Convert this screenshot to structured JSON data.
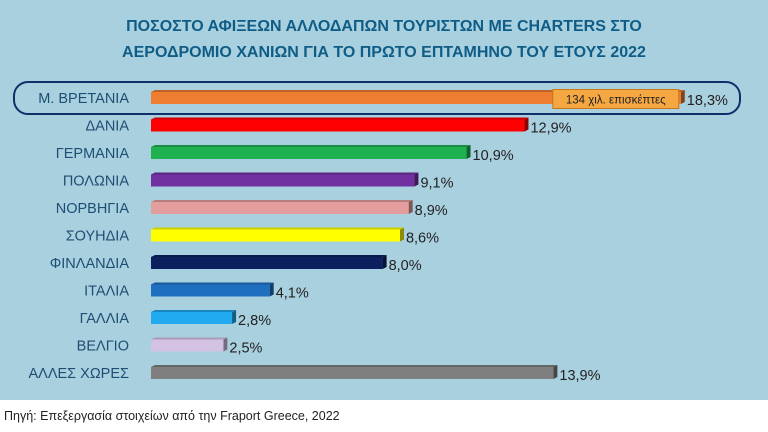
{
  "chart_data": {
    "type": "bar",
    "orientation": "horizontal",
    "title": "ΠΟΣΟΣΤΟ ΑΦΙΞΕΩΝ ΑΛΛΟΔΑΠΩΝ ΤΟΥΡΙΣΤΩΝ ΜΕ CHARTERS ΣΤΟ ΑΕΡΟΔΡΟΜΙΟ ΧΑΝΙΩΝ ΓΙΑ ΤΟ ΠΡΩΤΟ ΕΠΤΑΜΗΝΟ ΤΟΥ ΕΤΟΥΣ 2022",
    "title_lines": [
      "ΠΟΣΟΣΤΟ ΑΦΙΞΕΩΝ ΑΛΛΟΔΑΠΩΝ ΤΟΥΡΙΣΤΩΝ ΜΕ CHARTERS ΣΤΟ",
      "ΑΕΡΟΔΡΟΜΙΟ ΧΑΝΙΩΝ ΓΙΑ ΤΟ ΠΡΩΤΟ ΕΠΤΑΜΗΝΟ ΤΟΥ ΕΤΟΥΣ 2022"
    ],
    "categories": [
      "Μ. ΒΡΕΤΑΝΙΑ",
      "ΔΑΝΙΑ",
      "ΓΕΡΜΑΝΙΑ",
      "ΠΟΛΩΝΙΑ",
      "ΝΟΡΒΗΓΙΑ",
      "ΣΟΥΗΔΙΑ",
      "ΦΙΝΛΑΝΔΙΑ",
      "ΙΤΑΛΙΑ",
      "ΓΑΛΛΙΑ",
      "ΒΕΛΓΙΟ",
      "ΑΛΛΕΣ ΧΩΡΕΣ"
    ],
    "values": [
      18.3,
      12.9,
      10.9,
      9.1,
      8.9,
      8.6,
      8.0,
      4.1,
      2.8,
      2.5,
      13.9
    ],
    "value_labels": [
      "18,3%",
      "12,9%",
      "10,9%",
      "9,1%",
      "8,9%",
      "8,6%",
      "8,0%",
      "4,1%",
      "2,8%",
      "2,5%",
      "13,9%"
    ],
    "colors": [
      "#ed7d31",
      "#ff0000",
      "#1fb050",
      "#7030a0",
      "#e39d9d",
      "#ffff00",
      "#0c1f5e",
      "#1f6fc0",
      "#21aaf0",
      "#d4c2e3",
      "#7f7f7f"
    ],
    "xlim": [
      0,
      20
    ],
    "grid": false,
    "legend": "none",
    "highlight": {
      "category": "Μ. ΒΡΕΤΑΝΙΑ",
      "annotation": "134 χιλ. επισκέπτες"
    },
    "background": "#a9d0df"
  },
  "source": "Πηγή: Επεξεργασία στοιχείων από την Fraport Greece, 2022"
}
